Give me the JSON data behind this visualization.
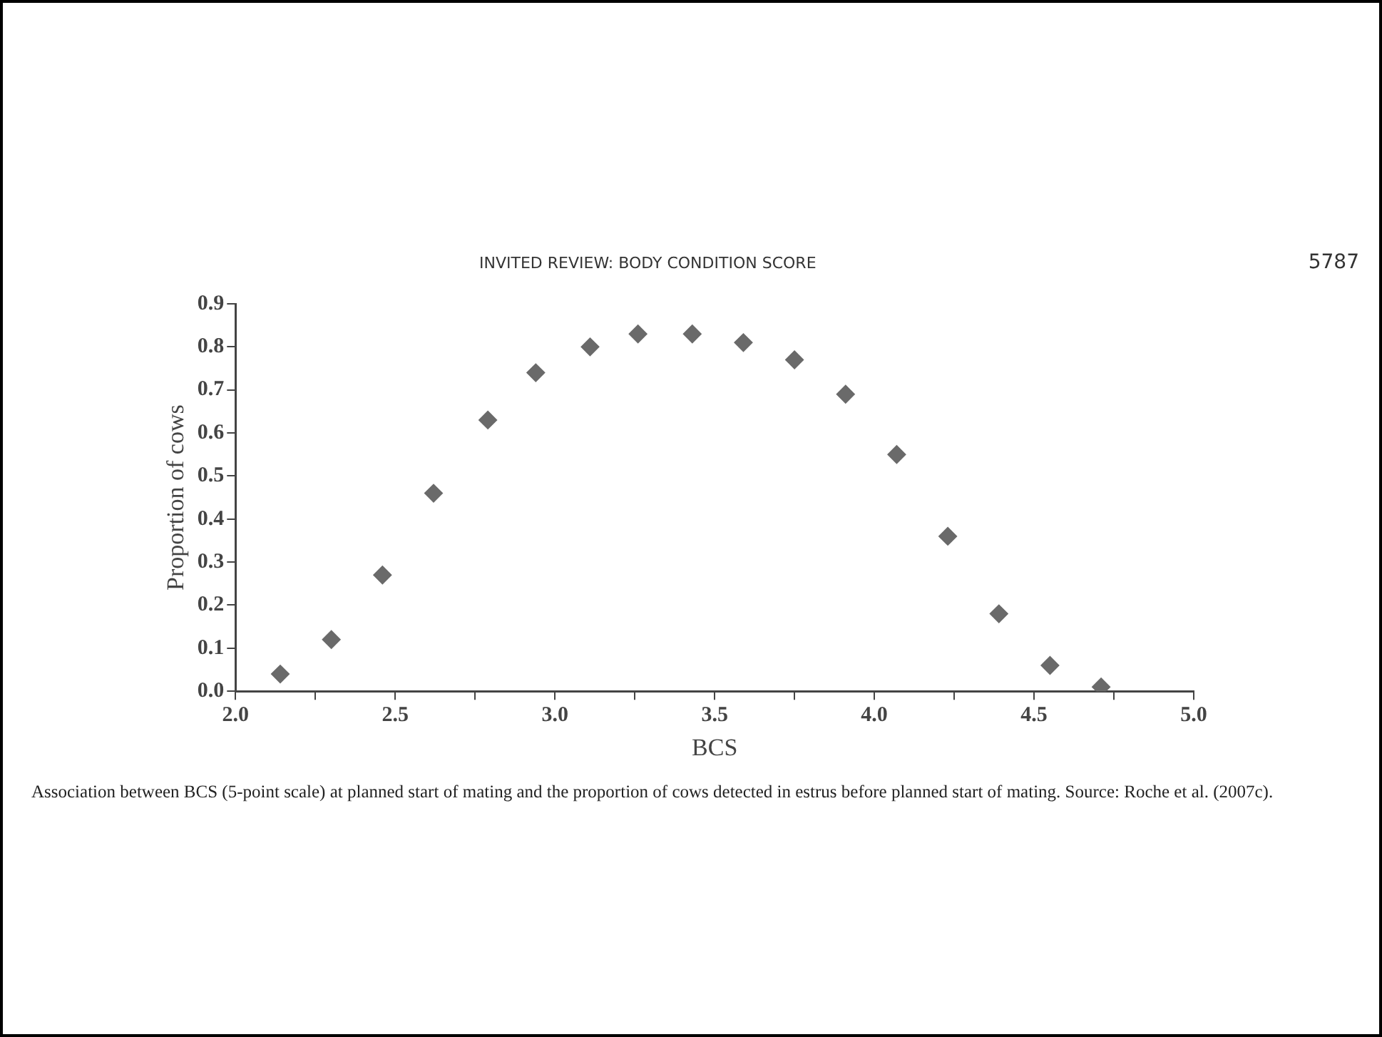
{
  "chart_data": {
    "type": "scatter",
    "x": [
      2.14,
      2.3,
      2.46,
      2.62,
      2.79,
      2.94,
      3.11,
      3.26,
      3.43,
      3.59,
      3.75,
      3.91,
      4.07,
      4.23,
      4.39,
      4.55,
      4.71
    ],
    "values": [
      0.04,
      0.12,
      0.27,
      0.46,
      0.63,
      0.74,
      0.8,
      0.83,
      0.83,
      0.81,
      0.77,
      0.69,
      0.55,
      0.36,
      0.18,
      0.06,
      0.01
    ],
    "color": "#6a6a6a",
    "marker": "diamond",
    "xlabel": "BCS",
    "ylabel": "Proportion of cows",
    "xlim": [
      2.0,
      5.0
    ],
    "xticks": [
      {
        "value": 2.0,
        "label": "2.0"
      },
      {
        "value": 2.25,
        "label": null
      },
      {
        "value": 2.5,
        "label": "2.5"
      },
      {
        "value": 2.75,
        "label": null
      },
      {
        "value": 3.0,
        "label": "3.0"
      },
      {
        "value": 3.25,
        "label": null
      },
      {
        "value": 3.5,
        "label": "3.5"
      },
      {
        "value": 3.75,
        "label": null
      },
      {
        "value": 4.0,
        "label": "4.0"
      },
      {
        "value": 4.25,
        "label": null
      },
      {
        "value": 4.5,
        "label": "4.5"
      },
      {
        "value": 4.75,
        "label": null
      },
      {
        "value": 5.0,
        "label": "5.0"
      }
    ],
    "ylim": [
      0,
      0.9
    ],
    "yticks": [
      {
        "value": 0,
        "label": "0.0"
      },
      {
        "value": 0.1,
        "label": "0.1"
      },
      {
        "value": 0.2,
        "label": "0.2"
      },
      {
        "value": 0.3,
        "label": "0.3"
      },
      {
        "value": 0.4,
        "label": "0.4"
      },
      {
        "value": 0.5,
        "label": "0.5"
      },
      {
        "value": 0.6,
        "label": "0.6"
      },
      {
        "value": 0.7,
        "label": "0.7"
      },
      {
        "value": 0.8,
        "label": "0.8"
      },
      {
        "value": 0.9,
        "label": "0.9"
      }
    ],
    "grid": false,
    "legend": false,
    "annotations": [
      "INVITED REVIEW: BODY CONDITION SCORE",
      "5787",
      "Association between BCS (5-point scale) at planned start of mating and the proportion of cows detected in estrus before planned start of mating. Source: Roche et al. (2007c)."
    ]
  }
}
